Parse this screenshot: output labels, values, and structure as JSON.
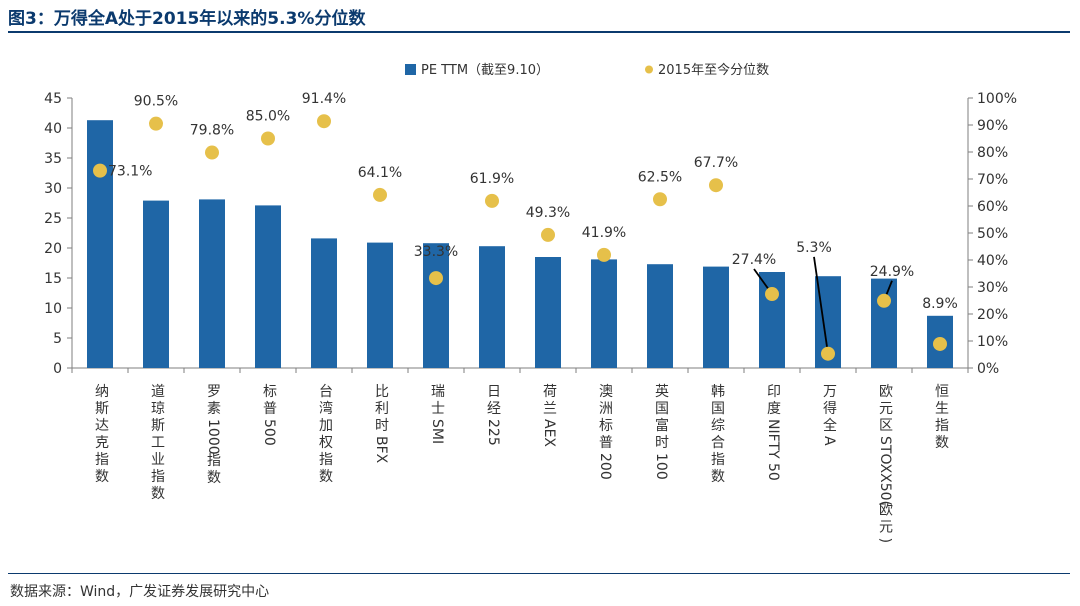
{
  "title": "图3：万得全A处于2015年以来的5.3%分位数",
  "source": "数据来源：Wind，广发证券发展研究中心",
  "colors": {
    "bar": "#1f66a6",
    "dot": "#e6c04a",
    "rule": "#0b3a6e"
  },
  "chart_data": {
    "type": "bar",
    "categories": [
      "纳斯达克指数",
      "道琼斯工业指数",
      "罗素1000指数",
      "标普500",
      "台湾加权指数",
      "比利时BFX",
      "瑞士SMI",
      "日经225",
      "荷兰AEX",
      "澳洲标普200",
      "英国富时100",
      "韩国综合指数",
      "印度NIFTY 50",
      "万得全A",
      "欧元区STOXX50(欧元)",
      "恒生指数"
    ],
    "series": [
      {
        "name": "PE TTM（截至9.10）",
        "type": "bar",
        "axis": "left",
        "values": [
          41.3,
          27.9,
          28.1,
          27.1,
          21.6,
          20.9,
          20.8,
          20.3,
          18.5,
          18.1,
          17.3,
          16.9,
          16.0,
          15.3,
          14.9,
          8.7
        ]
      },
      {
        "name": "2015年至今分位数",
        "type": "scatter",
        "axis": "right",
        "unit": "%",
        "values": [
          73.1,
          90.5,
          79.8,
          85.0,
          91.4,
          64.1,
          33.3,
          61.9,
          49.3,
          41.9,
          62.5,
          67.7,
          27.4,
          5.3,
          24.9,
          8.9
        ],
        "labels": [
          "73.1%",
          "90.5%",
          "79.8%",
          "85.0%",
          "91.4%",
          "64.1%",
          "33.3%",
          "61.9%",
          "49.3%",
          "41.9%",
          "62.5%",
          "67.7%",
          "27.4%",
          "5.3%",
          "24.9%",
          "8.9%"
        ]
      }
    ],
    "y_left": {
      "ylim": [
        0,
        45
      ],
      "ticks": [
        "0",
        "5",
        "10",
        "15",
        "20",
        "25",
        "30",
        "35",
        "40",
        "45"
      ]
    },
    "y_right": {
      "ylim": [
        0,
        100
      ],
      "ticks": [
        "0%",
        "10%",
        "20%",
        "30%",
        "40%",
        "50%",
        "60%",
        "70%",
        "80%",
        "90%",
        "100%"
      ]
    },
    "legend_position": "top-center",
    "grid": false
  }
}
